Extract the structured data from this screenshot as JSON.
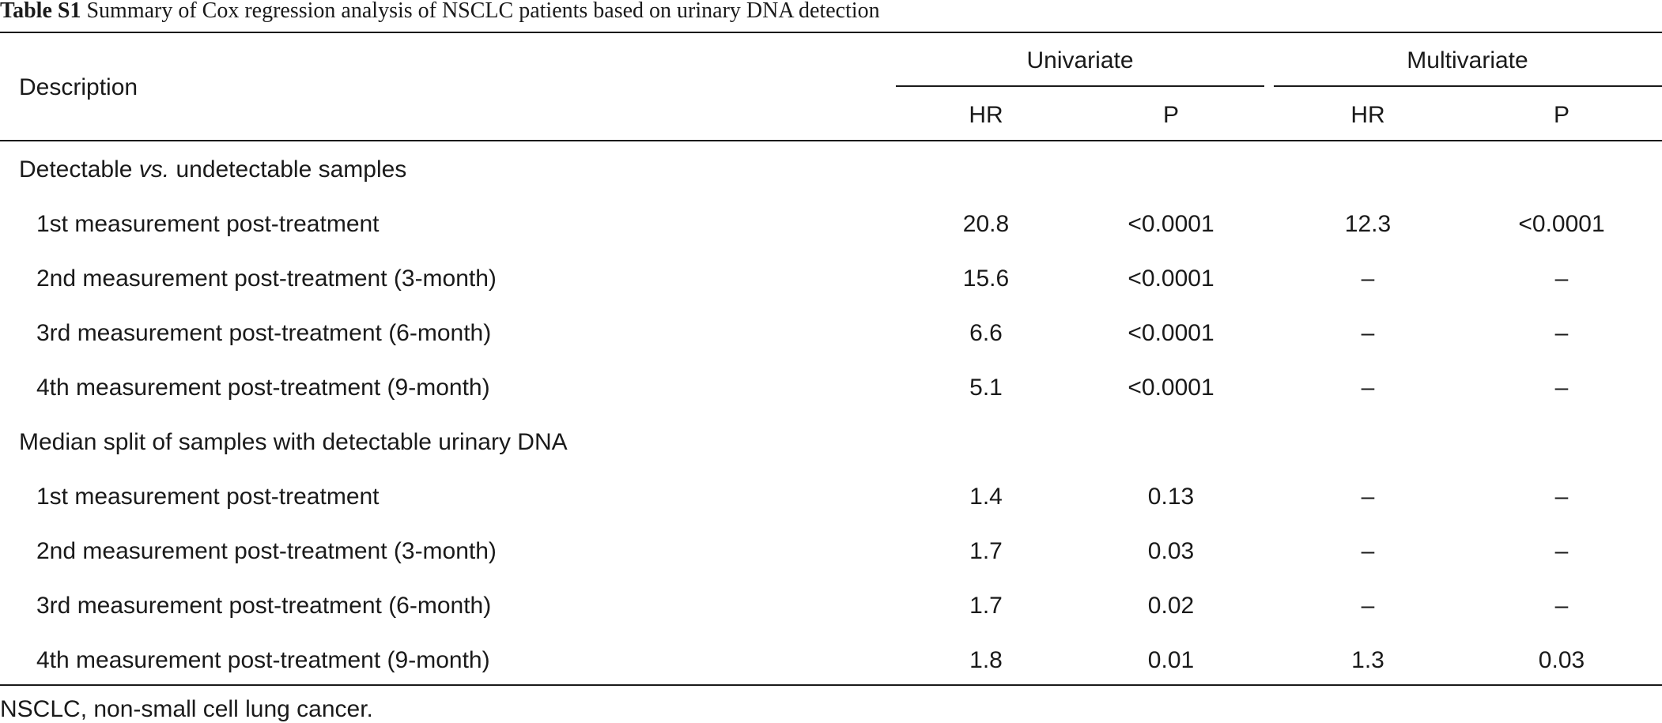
{
  "caption": {
    "label": "Table S1",
    "text": "Summary of Cox regression analysis of NSCLC patients based on urinary DNA detection"
  },
  "header": {
    "description": "Description",
    "group1": "Univariate",
    "group2": "Multivariate",
    "hr": "HR",
    "p": "P"
  },
  "sections": [
    {
      "title_pre": "Detectable ",
      "title_em": "vs.",
      "title_post": " undetectable samples",
      "rows": [
        {
          "label": "1st measurement post-treatment",
          "uni_hr": "20.8",
          "uni_p": "<0.0001",
          "multi_hr": "12.3",
          "multi_p": "<0.0001"
        },
        {
          "label": "2nd measurement post-treatment (3-month)",
          "uni_hr": "15.6",
          "uni_p": "<0.0001",
          "multi_hr": "–",
          "multi_p": "–"
        },
        {
          "label": "3rd measurement post-treatment (6-month)",
          "uni_hr": "6.6",
          "uni_p": "<0.0001",
          "multi_hr": "–",
          "multi_p": "–"
        },
        {
          "label": "4th measurement post-treatment (9-month)",
          "uni_hr": "5.1",
          "uni_p": "<0.0001",
          "multi_hr": "–",
          "multi_p": "–"
        }
      ]
    },
    {
      "title": "Median split of samples with detectable urinary DNA",
      "rows": [
        {
          "label": "1st measurement post-treatment",
          "uni_hr": "1.4",
          "uni_p": "0.13",
          "multi_hr": "–",
          "multi_p": "–"
        },
        {
          "label": "2nd measurement post-treatment (3-month)",
          "uni_hr": "1.7",
          "uni_p": "0.03",
          "multi_hr": "–",
          "multi_p": "–"
        },
        {
          "label": "3rd measurement post-treatment (6-month)",
          "uni_hr": "1.7",
          "uni_p": "0.02",
          "multi_hr": "–",
          "multi_p": "–"
        },
        {
          "label": "4th measurement post-treatment (9-month)",
          "uni_hr": "1.8",
          "uni_p": "0.01",
          "multi_hr": "1.3",
          "multi_p": "0.03"
        }
      ]
    }
  ],
  "footnote": "NSCLC, non-small cell lung cancer."
}
